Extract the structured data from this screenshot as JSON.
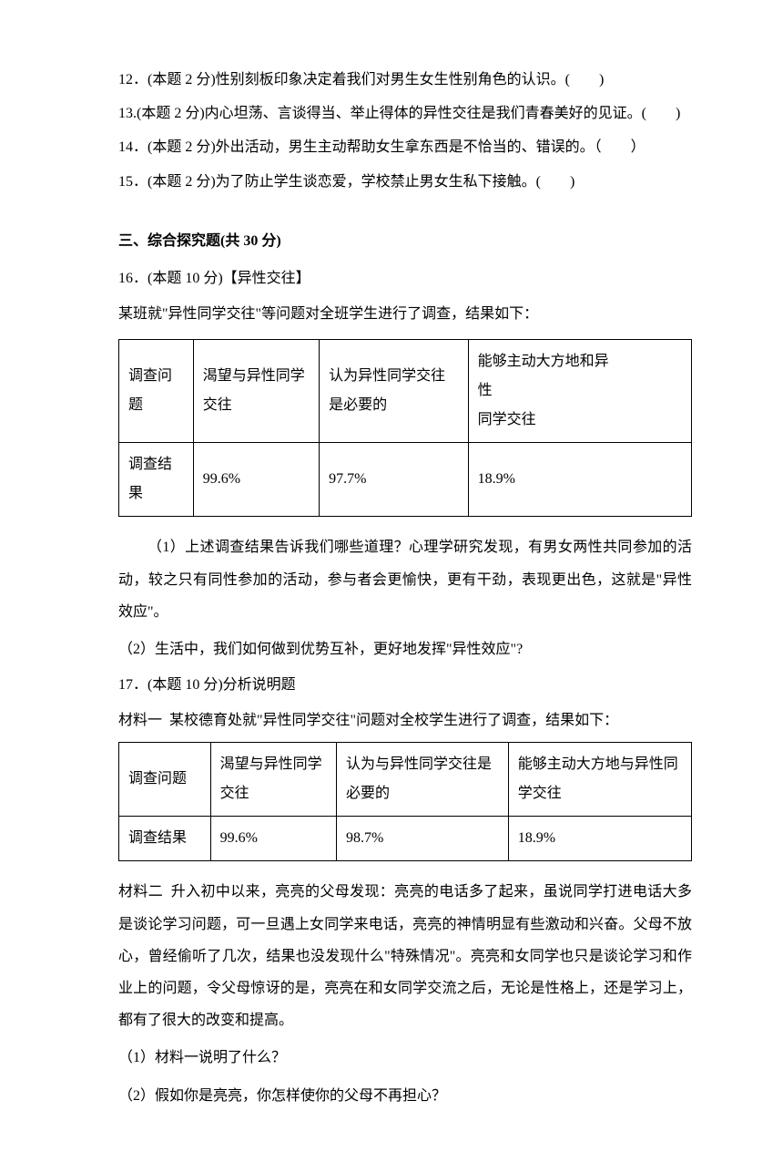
{
  "questions_tf": [
    {
      "num": "12",
      "points": "2",
      "text": "性别刻板印象决定着我们对男生女生性别角色的认识。",
      "blank": "(　　)"
    },
    {
      "num": "13",
      "points": "2",
      "text": "内心坦荡、言谈得当、举止得体的异性交往是我们青春美好的见证。",
      "blank": "(　　)"
    },
    {
      "num": "14",
      "points": "2",
      "text": "外出活动，男生主动帮助女生拿东西是不恰当的、错误的。",
      "blank": "（　　）"
    },
    {
      "num": "15",
      "points": "2",
      "text": "为了防止学生谈恋爱，学校禁止男女生私下接触。",
      "blank": "(　　)"
    }
  ],
  "section3": {
    "heading": "三、综合探究题(共 30 分)"
  },
  "q16": {
    "header": "16．(本题 10 分)【异性交往】",
    "intro": "某班就\"异性同学交往\"等问题对全班学生进行了调查，结果如下：",
    "table": {
      "row1": [
        "调查问题",
        "渴望与异性同学交往",
        "认为异性同学交往是必要的",
        "能够主动大方地和异性\n同学交往"
      ],
      "row2": [
        "调查结果",
        "99.6%",
        "97.7%",
        "18.9%"
      ]
    },
    "sub1": "（1）上述调查结果告诉我们哪些道理？心理学研究发现，有男女两性共同参加的活动，较之只有同性参加的活动，参与者会更愉快，更有干劲，表现更出色，这就是\"异性效应\"。",
    "sub2": "（2）生活中，我们如何做到优势互补，更好地发挥\"异性效应\"?"
  },
  "q17": {
    "header": "17．(本题 10 分)分析说明题",
    "material1_label": "材料一",
    "material1_text": "某校德育处就\"异性同学交往\"问题对全校学生进行了调查，结果如下：",
    "table": {
      "row1": [
        "调查问题",
        "渴望与异性同学交往",
        "认为与异性同学交往是必要的",
        "能够主动大方地与异性同学交往"
      ],
      "row2": [
        "调查结果",
        "99.6%",
        "98.7%",
        "18.9%"
      ]
    },
    "material2_label": "材料二",
    "material2_text": "升入初中以来，亮亮的父母发现：亮亮的电话多了起来，虽说同学打进电话大多是谈论学习问题，可一旦遇上女同学来电话，亮亮的神情明显有些激动和兴奋。父母不放心，曾经偷听了几次，结果也没发现什么\"特殊情况\"。亮亮和女同学也只是谈论学习和作业上的问题，令父母惊讶的是，亮亮在和女同学交流之后，无论是性格上，还是学习上，都有了很大的改变和提高。",
    "sub1": "（1）材料一说明了什么？",
    "sub2": "（2）假如你是亮亮，你怎样使你的父母不再担心？"
  }
}
